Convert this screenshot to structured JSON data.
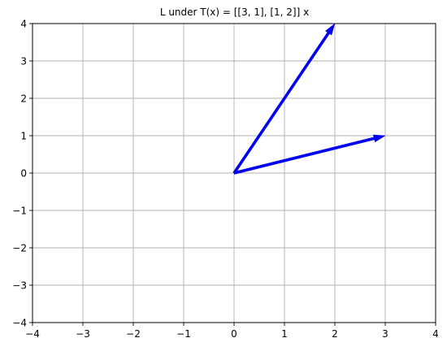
{
  "chart_data": {
    "type": "vector-field",
    "title": "L under T(x) = [[3, 1], [1, 2]] x",
    "xlabel": "",
    "ylabel": "",
    "xlim": [
      -4,
      4
    ],
    "ylim": [
      -4,
      4
    ],
    "xticks": [
      -4,
      -3,
      -2,
      -1,
      0,
      1,
      2,
      3,
      4
    ],
    "yticks": [
      -4,
      -3,
      -2,
      -1,
      0,
      1,
      2,
      3,
      4
    ],
    "xtick_labels": [
      "−4",
      "−3",
      "−2",
      "−1",
      "0",
      "1",
      "2",
      "3",
      "4"
    ],
    "ytick_labels": [
      "−4",
      "−3",
      "−2",
      "−1",
      "0",
      "1",
      "2",
      "3",
      "4"
    ],
    "grid": true,
    "vectors": [
      {
        "x0": 0,
        "y0": 0,
        "x1": 2,
        "y1": 4
      },
      {
        "x0": 0,
        "y0": 0,
        "x1": 3,
        "y1": 1
      }
    ],
    "colors": {
      "vector": "#0000ee",
      "grid": "#b0b0b0",
      "axes": "#000000"
    }
  }
}
